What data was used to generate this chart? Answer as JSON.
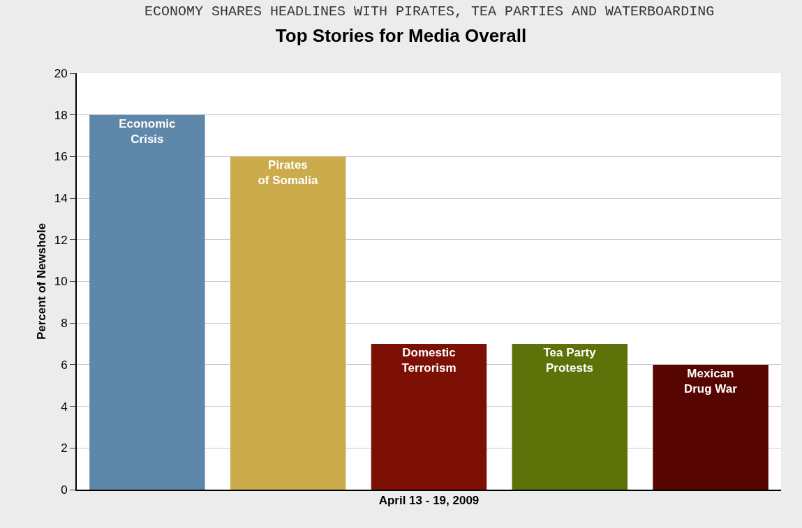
{
  "chart_data": {
    "type": "bar",
    "title": "Top Stories for Media Overall",
    "annotations": [
      "ECONOMY SHARES HEADLINES WITH PIRATES, TEA PARTIES AND WATERBOARDING"
    ],
    "xlabel": "April 13 - 19, 2009",
    "ylabel": "Percent of Newshole",
    "categories": [
      "Economic Crisis",
      "Pirates of Somalia",
      "Domestic Terrorism",
      "Tea Party Protests",
      "Mexican Drug War"
    ],
    "values": [
      18,
      16,
      7,
      7,
      6
    ],
    "colors": [
      "#5f87aa",
      "#cbab4b",
      "#7d1005",
      "#5d7209",
      "#560500"
    ],
    "ylim": [
      0,
      20
    ],
    "yticks": [
      0,
      2,
      4,
      6,
      8,
      10,
      12,
      14,
      16,
      18,
      20
    ],
    "grid": "y",
    "tick_labels": "y"
  }
}
